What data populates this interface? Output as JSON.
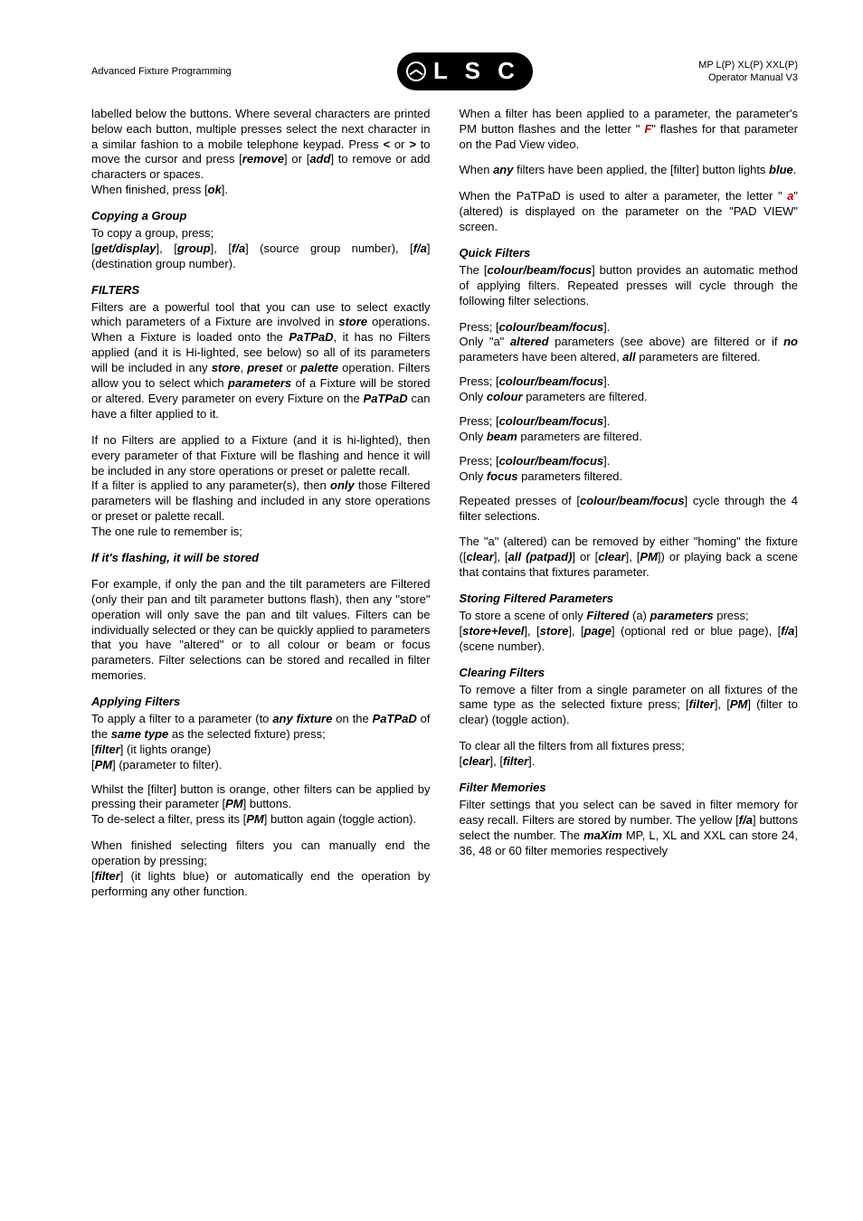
{
  "header": {
    "left": "Advanced Fixture Programming",
    "logo_text": "L S C",
    "right_line1": "MP L(P) XL(P) XXL(P)",
    "right_line2": "Operator Manual V3"
  },
  "s_intro": "labelled below the buttons. Where several characters are printed below each button, multiple presses select the next character in a similar fashion to a mobile telephone keypad. Press ",
  "s_intro_cursor_a": " or ",
  "s_intro_cursor_b": " to move the cursor and press [",
  "s_intro_remove": "] or [",
  "s_intro_remove2": "] to remove or add characters or spaces.",
  "s_intro_finished": "When finished, press [",
  "s_intro_ok": "].",
  "h_copy": "Copying a Group",
  "copy_a": "To copy a group, press;",
  "copy_b": "[",
  "copy_c": "], [",
  "copy_d": "], [",
  "copy_e": "] (source group number), [",
  "copy_f": "] (destination group number).",
  "h_filters": "FILTERS",
  "filters_p1a": "Filters are a powerful tool that you can use to select exactly which parameters of a Fixture are involved in ",
  "filters_p1b": " operations. When a Fixture is loaded onto the ",
  "filters_p1c": ", it has no Filters applied (and it is Hi-lighted, see below) so all of its parameters will be included in any ",
  "filters_store": "store",
  "filters_comma": ", ",
  "filters_preset": "preset",
  "filters_or": " or ",
  "filters_palette": "palette",
  "filters_p1d": " operation. Filters allow you to select which ",
  "filters_param": "parameters",
  "filters_p1e": " of a Fixture will be stored or altered. Every parameter on every Fixture on the ",
  "filters_p1f": " can have a filter applied to it.",
  "filters_p2a": "If no Filters are applied to a Fixture (and it is hi-lighted), then every parameter of that Fixture will be flashing and hence it will be included in any store operations or preset or palette recall.",
  "filters_p2b": "If a filter is applied to any parameter(s), then ",
  "filters_only": "only",
  "filters_p2c": " those Filtered parameters will be flashing and included in any store operations or preset or palette recall.",
  "filters_rule": "The one rule to remember is;",
  "filters_rule_text": "If it's flashing, it will be stored",
  "filters_p3": "For example, if only the pan and the tilt parameters are Filtered (only their pan and tilt parameter buttons flash), then any \"store\" operation will only save the pan and tilt values. Filters can be individually selected or they can be quickly applied to parameters that you have \"altered\" or to all colour or beam or focus parameters. Filter selections can be stored and recalled in filter memories.",
  "h_apply": "Applying Filters",
  "apply_a": "To apply a filter to a parameter (to ",
  "apply_any": "any fixture",
  "apply_b": " on the ",
  "apply_c": " of the ",
  "apply_same": "same type",
  "apply_d": " as the selected fixture) press;",
  "apply_e": "[",
  "apply_f": "] (it lights orange)",
  "apply_g": "[",
  "apply_h": "] (parameter to filter).",
  "whilst_a": "Whilst the [filter] button is orange, other filters can be applied by pressing their parameter [",
  "whilst_b": "] buttons.",
  "deselect_a": "To de-select a filter, press its [",
  "deselect_b": "] button again (toggle action).",
  "finish_a": "When finished selecting filters you can manually end the operation by pressing;",
  "finish_b": "[",
  "finish_c": "] (it lights blue) or automatically end the operation by performing any other function.",
  "fapplied_a": "When a filter has been applied to a parameter, the parameter's PM button flashes and the letter \" ",
  "fapplied_b": "\" flashes for that parameter on the Pad View video.",
  "any_a": "When ",
  "any_b": " filters have been applied, the [filter] button lights ",
  "any_c": ".",
  "patpad_a": "When the PaTPaD is used to alter a parameter, the letter \" ",
  "patpad_b": "\" (altered) is displayed on the parameter on the \"PAD VIEW\" screen.",
  "h_altered": "Quick Filters",
  "quick_a": "The [",
  "quick_b": "] button provides an automatic method of applying filters. Repeated presses will cycle through the following filter selections.",
  "qf1_a": "Press; [",
  "qf1_b": "].",
  "qf1_c": "Only \"a\" ",
  "qf1_alt": "altered",
  "qf1_d": " parameters (see above) are filtered or if ",
  "qf1_no": "no",
  "qf1_e": " parameters have been altered, ",
  "qf1_all": "all",
  "qf1_f": " parameters are filtered.",
  "qf2_a": "Press; [",
  "qf2_b": "].",
  "qf2_only": "Only ",
  "qf2_colour": "colour",
  "qf2_c": " parameters are filtered.",
  "qf3_a": "Press; [",
  "qf3_b": "].",
  "qf3_only": "Only ",
  "qf3_beam": "beam",
  "qf3_c": " parameters are filtered.",
  "qf4_a": "Press; [",
  "qf4_b": "].",
  "qf4_only": "Only ",
  "qf4_focus": "focus",
  "qf4_c": " parameters filtered.",
  "rep_a": "Repeated presses of [",
  "rep_b": "] cycle through the 4 filter selections.",
  "arem_a": "The \"a\" (altered) can be removed by either \"homing\" the fixture ([",
  "arem_b": "], [",
  "arem_c": "] or [",
  "arem_d": "], [",
  "arem_e": "]) or playing back a scene that contains that fixtures parameter.",
  "h_storefilt": "Storing Filtered Parameters",
  "sf_a": "To store a scene of only ",
  "sf_filtered": "Filtered",
  "sf_b": " (a) ",
  "sf_param": "parameters",
  "sf_c": " press;",
  "sf_d": "[",
  "sf_e": "], [",
  "sf_f": "], [",
  "sf_g": "] (optional red or blue page), [",
  "sf_h": "] (scene number).",
  "h_clear": "Clearing Filters",
  "clr_a": "To remove a filter from a single parameter on all fixtures of the same type as the selected fixture press; [",
  "clr_b": "], [",
  "clr_c": "] (filter to clear) (toggle action).",
  "clrall_a": "To clear all the filters from all fixtures press;",
  "clrall_b": "[",
  "clrall_c": "], [",
  "clrall_d": "].",
  "h_fmem": "Filter Memories",
  "fmem_a": "Filter settings that you select can be saved in filter memory for easy recall. Filters are stored by number. The yellow [",
  "fmem_b": "] buttons select the number. The ",
  "fmem_max": "maXim",
  "fmem_c": " MP, L, XL and XXL can store 24, 36, 48 or 60 filter memories respectively"
}
